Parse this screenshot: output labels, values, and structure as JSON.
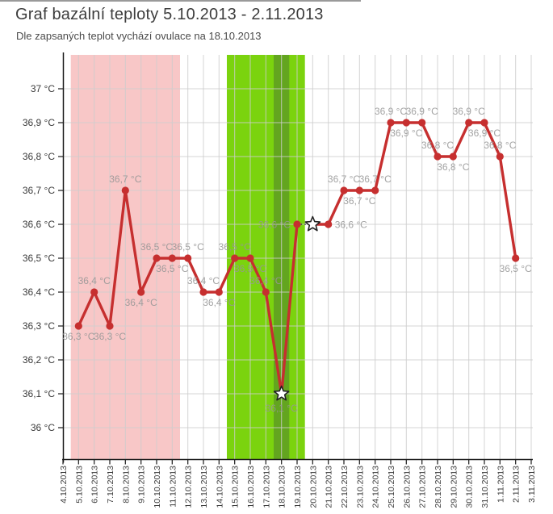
{
  "page": {
    "title": "Graf bazální teploty 5.10.2013 - 2.11.2013",
    "subtitle": "Dle zapsaných teplot vychází ovulace na 18.10.2013"
  },
  "chart_data": {
    "type": "line",
    "title": "Graf bazální teploty 5.10.2013 - 2.11.2013",
    "subtitle": "Dle zapsaných teplot vychází ovulace na 18.10.2013",
    "unit": "°C",
    "ylim": [
      35.9,
      37.1
    ],
    "grid": true,
    "y_ticks": [
      {
        "value": 37.0,
        "label": "37 °C"
      },
      {
        "value": 36.9,
        "label": "36,9 °C"
      },
      {
        "value": 36.8,
        "label": "36,8 °C"
      },
      {
        "value": 36.7,
        "label": "36,7 °C"
      },
      {
        "value": 36.6,
        "label": "36,6 °C"
      },
      {
        "value": 36.5,
        "label": "36,5 °C"
      },
      {
        "value": 36.4,
        "label": "36,4 °C"
      },
      {
        "value": 36.3,
        "label": "36,3 °C"
      },
      {
        "value": 36.2,
        "label": "36,2 °C"
      },
      {
        "value": 36.1,
        "label": "36,1 °C"
      },
      {
        "value": 36.0,
        "label": "36 °C"
      }
    ],
    "x_dates": [
      "4.10.2013",
      "5.10.2013",
      "6.10.2013",
      "7.10.2013",
      "8.10.2013",
      "9.10.2013",
      "10.10.2013",
      "11.10.2013",
      "12.10.2013",
      "13.10.2013",
      "14.10.2013",
      "15.10.2013",
      "16.10.2013",
      "17.10.2013",
      "18.10.2013",
      "19.10.2013",
      "20.10.2013",
      "21.10.2013",
      "22.10.2013",
      "23.10.2013",
      "24.10.2013",
      "25.10.2013",
      "26.10.2013",
      "27.10.2013",
      "28.10.2013",
      "29.10.2013",
      "30.10.2013",
      "31.10.2013",
      "1.11.2013",
      "2.11.2013",
      "3.11.2013"
    ],
    "bands": [
      {
        "name": "menstruation",
        "from": "5.10.2013",
        "to": "11.10.2013",
        "color": "#f8c7c7"
      },
      {
        "name": "fertile-window",
        "from": "15.10.2013",
        "to": "19.10.2013",
        "color": "#7bd30e"
      },
      {
        "name": "ovulation-day",
        "from": "18.10.2013",
        "to": "18.10.2013",
        "color": "#63a51f"
      }
    ],
    "series": [
      {
        "name": "bazální teplota",
        "color": "#c62f2f",
        "points": [
          {
            "date": "5.10.2013",
            "temp": 36.3,
            "label": "36,3 °C",
            "label_pos": "below",
            "marker": "dot"
          },
          {
            "date": "6.10.2013",
            "temp": 36.4,
            "label": "36,4 °C",
            "label_pos": "above",
            "marker": "dot"
          },
          {
            "date": "7.10.2013",
            "temp": 36.3,
            "label": "36,3 °C",
            "label_pos": "below",
            "marker": "dot"
          },
          {
            "date": "8.10.2013",
            "temp": 36.7,
            "label": "36,7 °C",
            "label_pos": "above",
            "marker": "dot"
          },
          {
            "date": "9.10.2013",
            "temp": 36.4,
            "label": "36,4 °C",
            "label_pos": "below",
            "marker": "dot"
          },
          {
            "date": "10.10.2013",
            "temp": 36.5,
            "label": "36,5 °C",
            "label_pos": "above",
            "marker": "dot"
          },
          {
            "date": "11.10.2013",
            "temp": 36.5,
            "label": "36,5 °C",
            "label_pos": "below",
            "marker": "dot"
          },
          {
            "date": "12.10.2013",
            "temp": 36.5,
            "label": "36,5 °C",
            "label_pos": "above",
            "marker": "dot"
          },
          {
            "date": "13.10.2013",
            "temp": 36.4,
            "label": "36,4 °C",
            "label_pos": "above",
            "marker": "dot"
          },
          {
            "date": "14.10.2013",
            "temp": 36.4,
            "label": "36,4 °C",
            "label_pos": "below",
            "marker": "dot"
          },
          {
            "date": "15.10.2013",
            "temp": 36.5,
            "label": "36,5 °C",
            "label_pos": "above",
            "marker": "dot"
          },
          {
            "date": "16.10.2013",
            "temp": 36.5,
            "label": "36,5 °C",
            "label_pos": "below",
            "marker": "dot"
          },
          {
            "date": "17.10.2013",
            "temp": 36.4,
            "label": "36,4 °C",
            "label_pos": "above",
            "marker": "dot"
          },
          {
            "date": "18.10.2013",
            "temp": 36.1,
            "label": "36,1 °C",
            "label_pos": "below",
            "marker": "star"
          },
          {
            "date": "19.10.2013",
            "temp": 36.6,
            "label": "36,6 °C",
            "label_pos": "left",
            "marker": "dot"
          },
          {
            "date": "20.10.2013",
            "temp": 36.6,
            "label": null,
            "label_pos": null,
            "marker": "star"
          },
          {
            "date": "21.10.2013",
            "temp": 36.6,
            "label": "36,6 °C",
            "label_pos": "right",
            "marker": "dot"
          },
          {
            "date": "22.10.2013",
            "temp": 36.7,
            "label": "36,7 °C",
            "label_pos": "above",
            "marker": "dot"
          },
          {
            "date": "23.10.2013",
            "temp": 36.7,
            "label": "36,7 °C",
            "label_pos": "below",
            "marker": "dot"
          },
          {
            "date": "24.10.2013",
            "temp": 36.7,
            "label": "36,7 °C",
            "label_pos": "above",
            "marker": "dot"
          },
          {
            "date": "25.10.2013",
            "temp": 36.9,
            "label": "36,9 °C",
            "label_pos": "above",
            "marker": "dot"
          },
          {
            "date": "26.10.2013",
            "temp": 36.9,
            "label": "36,9 °C",
            "label_pos": "below",
            "marker": "dot"
          },
          {
            "date": "27.10.2013",
            "temp": 36.9,
            "label": "36,9 °C",
            "label_pos": "above",
            "marker": "dot"
          },
          {
            "date": "28.10.2013",
            "temp": 36.8,
            "label": "36,8 °C",
            "label_pos": "above",
            "marker": "dot"
          },
          {
            "date": "29.10.2013",
            "temp": 36.8,
            "label": "36,8 °C",
            "label_pos": "below",
            "marker": "dot"
          },
          {
            "date": "30.10.2013",
            "temp": 36.9,
            "label": "36,9 °C",
            "label_pos": "above",
            "marker": "dot"
          },
          {
            "date": "31.10.2013",
            "temp": 36.9,
            "label": "36,9 °C",
            "label_pos": "below",
            "marker": "dot"
          },
          {
            "date": "1.11.2013",
            "temp": 36.8,
            "label": "36,8 °C",
            "label_pos": "above",
            "marker": "dot"
          },
          {
            "date": "2.11.2013",
            "temp": 36.5,
            "label": "36,5 °C",
            "label_pos": "below",
            "marker": "dot"
          }
        ]
      }
    ],
    "dotted_segment": {
      "from": "19.10.2013",
      "to": "20.10.2013"
    },
    "colors": {
      "line": "#c62f2f",
      "point_label": "#969696",
      "grid": "#cccccc",
      "axis": "#1a1a1a",
      "tick_label": "#3a3a3a",
      "star_fill": "#ffffff",
      "star_stroke": "#222222"
    },
    "legend_position": "none"
  }
}
